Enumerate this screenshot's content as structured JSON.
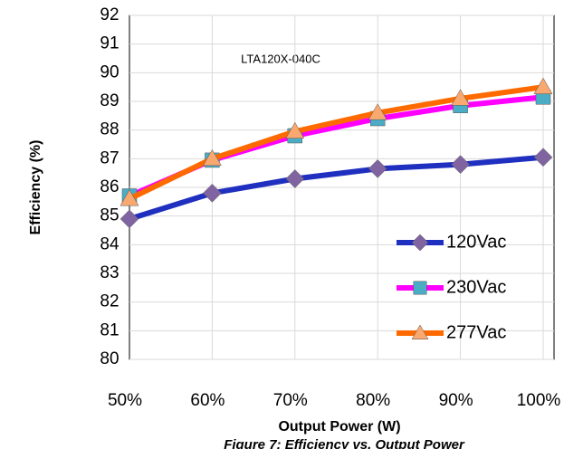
{
  "chart_data": {
    "type": "line",
    "annotation": "LTA120X-040C",
    "x_label": "Output Power (W)",
    "y_label": "Efficiency (%)",
    "caption": "Figure 7: Efficiency vs. Output Power",
    "categories": [
      "50%",
      "60%",
      "70%",
      "80%",
      "90%",
      "100%"
    ],
    "series": [
      {
        "name": "120Vac",
        "color": "#1f2fbf",
        "marker_color": "#8064a2",
        "marker": "diamond",
        "values": [
          84.9,
          85.8,
          86.3,
          86.65,
          86.8,
          87.05
        ]
      },
      {
        "name": "230Vac",
        "color": "#ff00ff",
        "marker_color": "#4bacc6",
        "marker": "square",
        "values": [
          85.7,
          86.95,
          87.8,
          88.4,
          88.85,
          89.15
        ]
      },
      {
        "name": "277Vac",
        "color": "#ff6a00",
        "marker_color": "#f9a870",
        "marker": "triangle",
        "values": [
          85.6,
          87.0,
          87.95,
          88.6,
          89.1,
          89.5
        ]
      }
    ],
    "ylim": [
      80,
      92
    ],
    "yticks": [
      80,
      81,
      82,
      83,
      84,
      85,
      86,
      87,
      88,
      89,
      90,
      91,
      92
    ],
    "grid": true,
    "legend": "lower right"
  }
}
